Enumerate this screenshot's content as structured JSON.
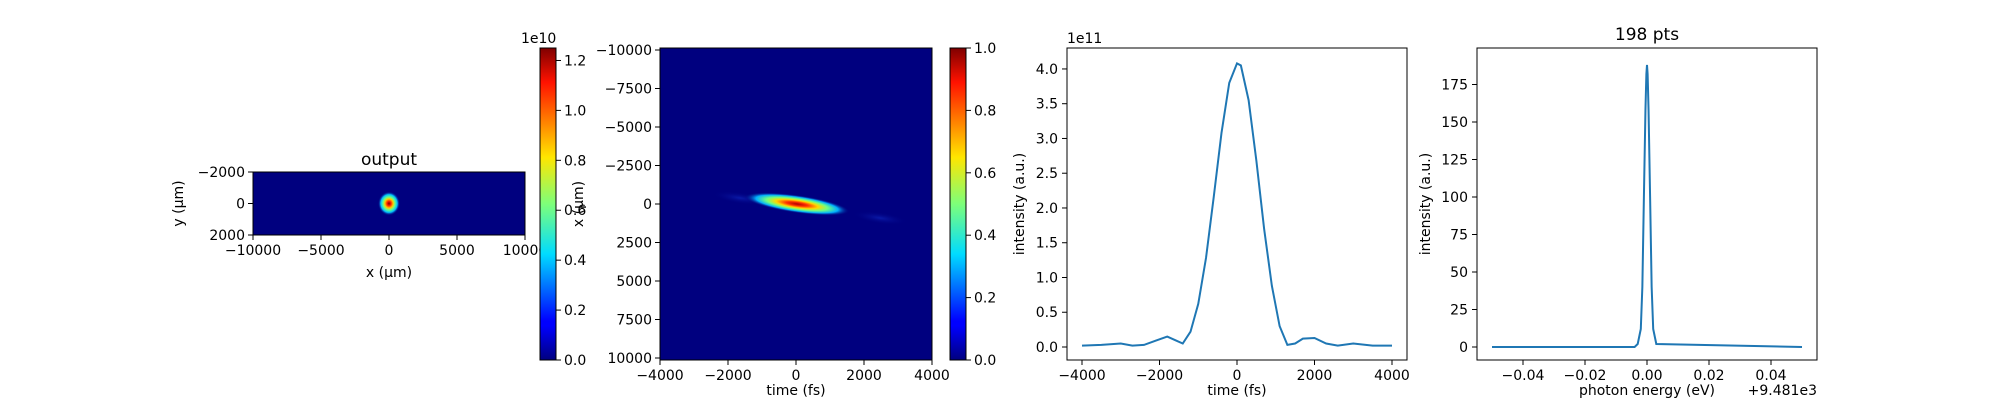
{
  "chart_data": [
    {
      "type": "heatmap",
      "title": "output",
      "xlabel": "x (μm)",
      "ylabel": "y (μm)",
      "xlim": [
        -10000,
        10000
      ],
      "ylim": [
        2000,
        -2000
      ],
      "xticks": [
        "−10000",
        "−5000",
        "0",
        "5000",
        "10000"
      ],
      "yticks": [
        "−2000",
        "0",
        "2000"
      ],
      "spot": {
        "x": 0,
        "y": 0,
        "sx": 350,
        "sy": 350,
        "peak": 12500000000.0
      },
      "colorbar": {
        "min": 0,
        "max": 12500000000.0,
        "ticks": [
          "0.0",
          "0.2",
          "0.4",
          "0.6",
          "0.8",
          "1.0",
          "1.2"
        ],
        "multiplier": "1e10",
        "colormap": "jet"
      }
    },
    {
      "type": "heatmap",
      "xlabel": "time (fs)",
      "ylabel": "x (μm)",
      "xlim": [
        -4000,
        4000
      ],
      "ylim": [
        -10000,
        10000
      ],
      "xticks": [
        "−4000",
        "−2000",
        "0",
        "2000",
        "4000"
      ],
      "yticks": [
        "−10000",
        "−7500",
        "−5000",
        "−2500",
        "0",
        "2500",
        "5000",
        "7500",
        "10000"
      ],
      "spot": {
        "t": 0,
        "x": 0,
        "st": 450,
        "sx": 350,
        "tilt_um_per_fs": 0.35
      },
      "colorbar": {
        "min": 0,
        "max": 1,
        "ticks": [
          "0.0",
          "0.2",
          "0.4",
          "0.6",
          "0.8",
          "1.0"
        ],
        "colormap": "jet"
      }
    },
    {
      "type": "line",
      "xlabel": "time (fs)",
      "ylabel": "intensity (a.u.)",
      "multiplier": "1e11",
      "xlim": [
        -4000,
        4000
      ],
      "ylim": [
        0,
        4.1
      ],
      "xticks": [
        "−4000",
        "−2000",
        "0",
        "2000",
        "4000"
      ],
      "yticks": [
        "0.0",
        "0.5",
        "1.0",
        "1.5",
        "2.0",
        "2.5",
        "3.0",
        "3.5",
        "4.0"
      ],
      "series": [
        {
          "x": [
            -4000,
            -3500,
            -3000,
            -2700,
            -2400,
            -2100,
            -1800,
            -1600,
            -1400,
            -1200,
            -1000,
            -800,
            -600,
            -400,
            -200,
            0,
            100,
            300,
            500,
            700,
            900,
            1100,
            1300,
            1500,
            1700,
            2000,
            2300,
            2600,
            3000,
            3500,
            4000
          ],
          "y": [
            0.02,
            0.03,
            0.05,
            0.02,
            0.03,
            0.09,
            0.15,
            0.1,
            0.05,
            0.22,
            0.62,
            1.28,
            2.16,
            3.08,
            3.8,
            4.08,
            4.05,
            3.55,
            2.68,
            1.7,
            0.88,
            0.3,
            0.03,
            0.05,
            0.12,
            0.13,
            0.05,
            0.02,
            0.05,
            0.02,
            0.02
          ]
        }
      ]
    },
    {
      "type": "line",
      "title": "198 pts",
      "xlabel": "photon energy (eV)",
      "ylabel": "intensity (a.u.)",
      "offset": "+9.481e3",
      "xlim": [
        -0.05,
        0.05
      ],
      "ylim": [
        0,
        190
      ],
      "xticks": [
        "−0.04",
        "−0.02",
        "0.00",
        "0.02",
        "0.04"
      ],
      "yticks": [
        "0",
        "25",
        "50",
        "75",
        "100",
        "125",
        "150",
        "175"
      ],
      "series": [
        {
          "x": [
            -0.05,
            -0.004,
            -0.003,
            -0.002,
            -0.0015,
            -0.001,
            -0.0005,
            -0.0002,
            0,
            0.0002,
            0.0005,
            0.001,
            0.0015,
            0.002,
            0.003,
            0.05
          ],
          "y": [
            0,
            0,
            2,
            12,
            40,
            100,
            158,
            182,
            188,
            182,
            158,
            100,
            40,
            12,
            2,
            0
          ]
        }
      ]
    }
  ]
}
